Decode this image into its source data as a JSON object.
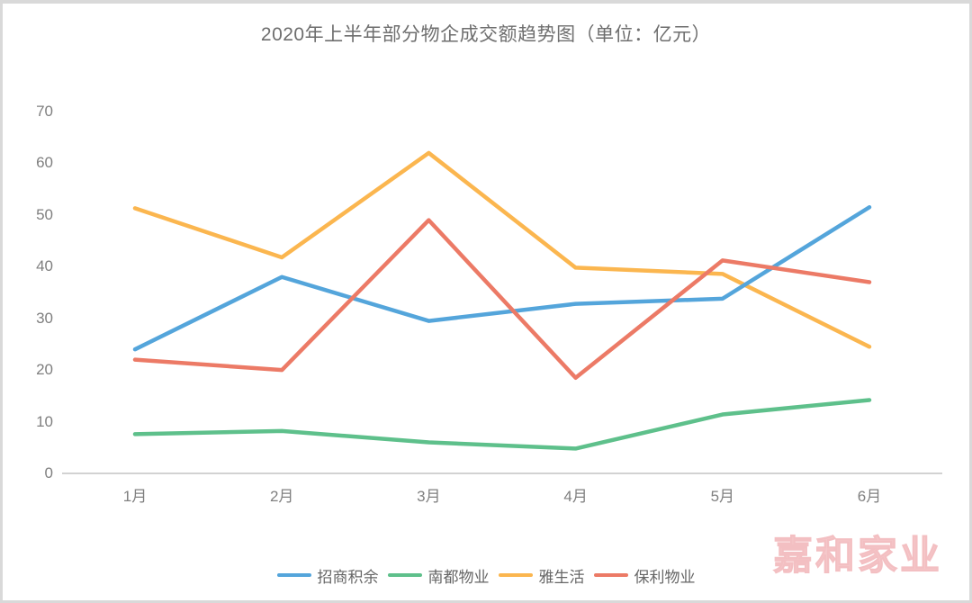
{
  "title": "2020年上半年部分物企成交额趋势图（单位：亿元）",
  "watermark": "嘉和家业",
  "chart_data": {
    "type": "line",
    "categories": [
      "1月",
      "2月",
      "3月",
      "4月",
      "5月",
      "6月"
    ],
    "series": [
      {
        "name": "招商积余",
        "color": "#54A5DB",
        "values": [
          24,
          38,
          29.5,
          32.8,
          33.8,
          51.5
        ]
      },
      {
        "name": "南都物业",
        "color": "#5EC08B",
        "values": [
          7.6,
          8.2,
          6,
          4.8,
          11.4,
          14.2
        ]
      },
      {
        "name": "雅生活",
        "color": "#FBB64F",
        "values": [
          51.3,
          41.8,
          62,
          39.8,
          38.6,
          24.5
        ]
      },
      {
        "name": "保利物业",
        "color": "#EC7A66",
        "values": [
          22,
          20,
          49,
          18.5,
          41.2,
          37
        ]
      }
    ],
    "title": "2020年上半年部分物企成交额趋势图（单位：亿元）",
    "xlabel": "",
    "ylabel": "",
    "ylim": [
      0,
      70
    ],
    "yticks": [
      0,
      10,
      20,
      30,
      40,
      50,
      60,
      70
    ],
    "grid": false,
    "legend_position": "bottom"
  },
  "colors": {
    "axis_line": "#d2d2d2",
    "axis_label": "#7f7f7f",
    "title_text": "#6e6e6e",
    "watermark_pink": "#f5c8ca",
    "frame_border": "#d9d9d9"
  }
}
